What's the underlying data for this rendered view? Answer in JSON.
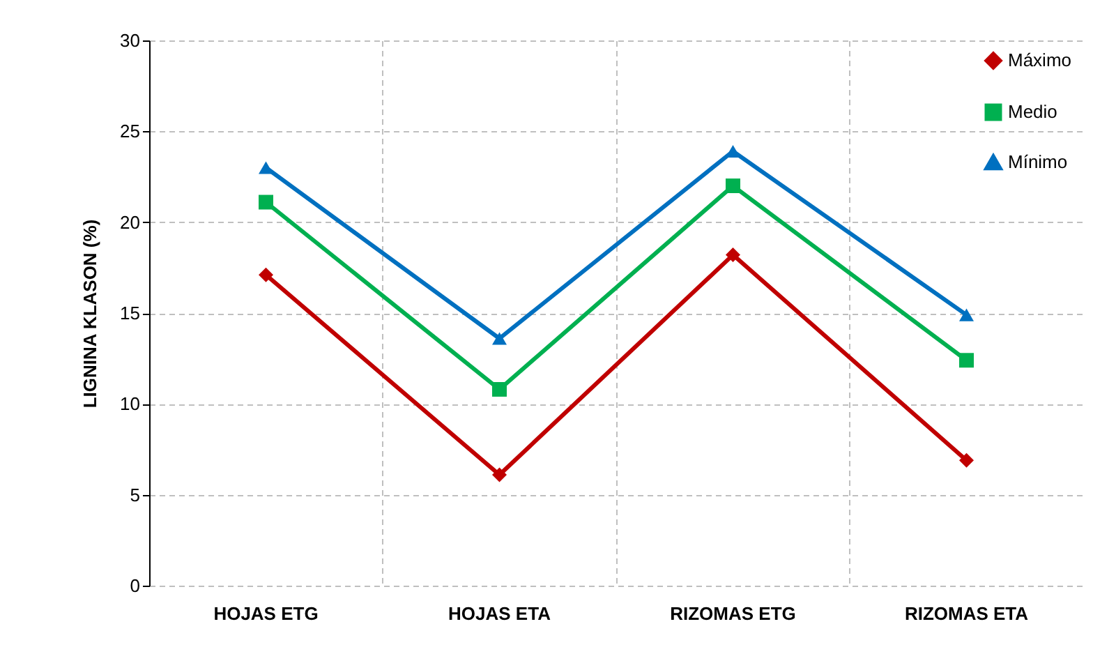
{
  "chart_data": {
    "type": "line",
    "ylabel": "LIGNINA KLASON (%)",
    "categories": [
      "HOJAS ETG",
      "HOJAS ETA",
      "RIZOMAS ETG",
      "RIZOMAS ETA"
    ],
    "series": [
      {
        "name": "Máximo",
        "color": "#c00000",
        "marker": "diamond",
        "values": [
          17.1,
          6.1,
          18.2,
          6.9
        ]
      },
      {
        "name": "Medio",
        "color": "#00b050",
        "marker": "square",
        "values": [
          21.1,
          10.8,
          22.0,
          12.4
        ]
      },
      {
        "name": "Mínimo",
        "color": "#0070c0",
        "marker": "triangle",
        "values": [
          23.0,
          13.6,
          23.9,
          14.9
        ]
      }
    ],
    "ylim": [
      0,
      30
    ],
    "yticks": [
      0,
      5,
      10,
      15,
      20,
      25,
      30
    ],
    "grid": true,
    "legend": "top right",
    "line_style": "solid"
  }
}
